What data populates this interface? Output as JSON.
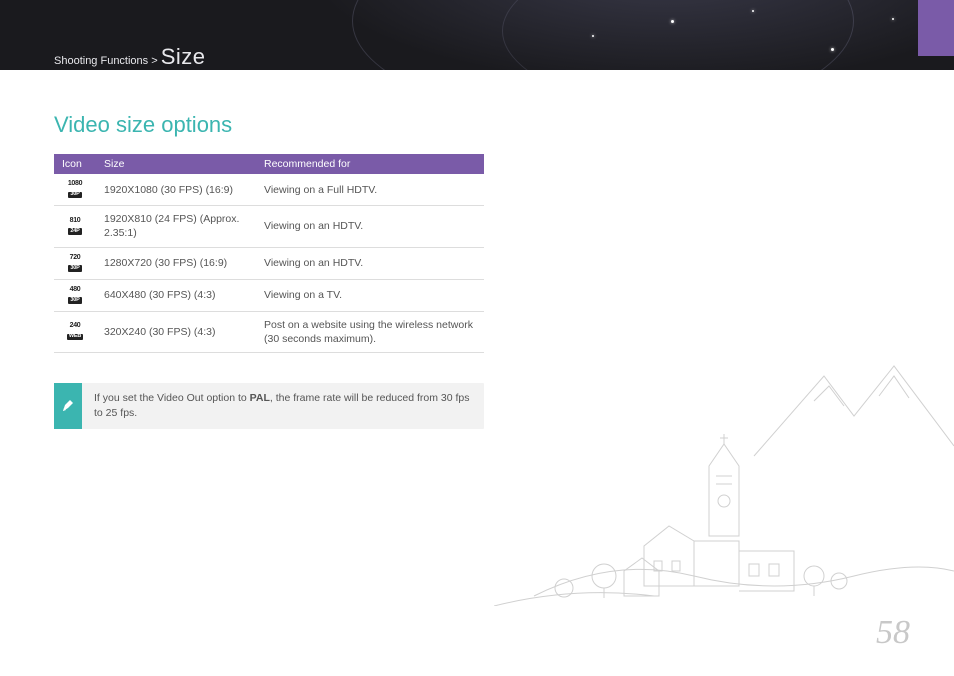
{
  "header": {
    "breadcrumb_prefix": "Shooting Functions > ",
    "breadcrumb_current": "Size"
  },
  "section": {
    "title": "Video size options"
  },
  "table": {
    "columns": [
      "Icon",
      "Size",
      "Recommended for"
    ],
    "rows": [
      {
        "icon_top": "1080",
        "icon_bot": "30P",
        "size": "1920X1080 (30 FPS) (16:9)",
        "rec": "Viewing on a Full HDTV."
      },
      {
        "icon_top": "810",
        "icon_bot": "24P",
        "size": "1920X810 (24 FPS) (Approx. 2.35:1)",
        "rec": "Viewing on an HDTV."
      },
      {
        "icon_top": "720",
        "icon_bot": "30P",
        "size": "1280X720 (30 FPS) (16:9)",
        "rec": "Viewing on an HDTV."
      },
      {
        "icon_top": "480",
        "icon_bot": "30P",
        "size": "640X480 (30 FPS) (4:3)",
        "rec": "Viewing on a TV."
      },
      {
        "icon_top": "240",
        "icon_bot": "WEB",
        "size": "320X240 (30 FPS) (4:3)",
        "rec": "Post on a website using the wireless network (30 seconds maximum)."
      }
    ]
  },
  "note": {
    "text_before": "If you set the Video Out option to ",
    "text_bold": "PAL",
    "text_after": ", the frame rate will be reduced from 30 fps to 25 fps."
  },
  "page_number": "58",
  "colors": {
    "accent_teal": "#3bb5b0",
    "accent_purple": "#7a5ba8",
    "header_bg": "#1a1a1e",
    "text_body": "#555555",
    "border": "#dddddd",
    "note_bg": "#f2f2f2",
    "pagenum": "#c8c8c8"
  },
  "typography": {
    "title_fontsize_pt": 17,
    "body_fontsize_pt": 8,
    "pagenum_fontsize_pt": 26
  }
}
